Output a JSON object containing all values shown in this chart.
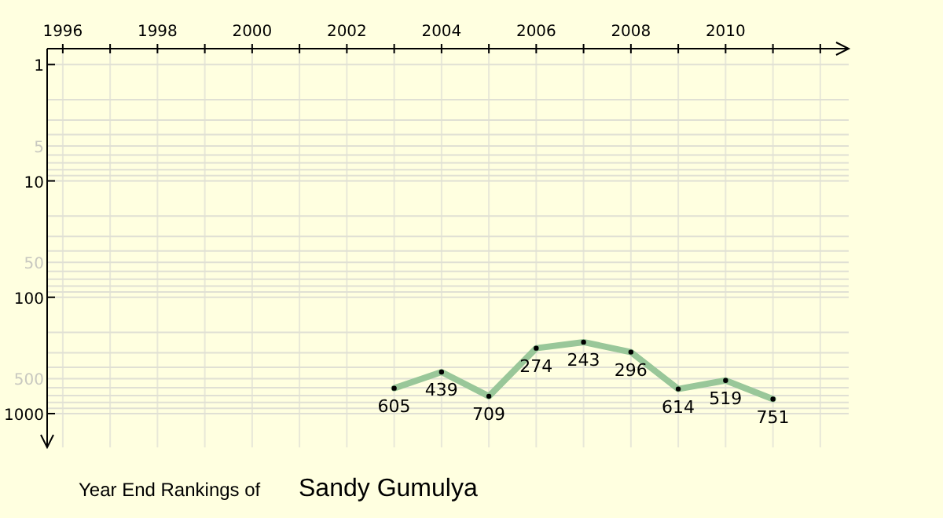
{
  "chart_data": {
    "type": "line",
    "title": "Year End Rankings of",
    "subtitle": "Sandy Gumulya",
    "x": [
      2003,
      2004,
      2005,
      2006,
      2007,
      2008,
      2009,
      2010,
      2011
    ],
    "series": [
      {
        "color": "#99c799",
        "values": [
          605,
          439,
          709,
          274,
          243,
          296,
          614,
          519,
          751
        ]
      }
    ],
    "xlim": [
      1995.67,
      2012.6
    ],
    "xticks": [
      1996,
      {
        "value": 1997,
        "label": null
      },
      1998,
      {
        "value": 1999,
        "label": null
      },
      2000,
      {
        "value": 2001,
        "label": null
      },
      2002,
      {
        "value": 2003,
        "label": null
      },
      2004,
      {
        "value": 2005,
        "label": null
      },
      2006,
      {
        "value": 2007,
        "label": null
      },
      2008,
      {
        "value": 2009,
        "label": null
      },
      2010,
      {
        "value": 2011,
        "label": null
      },
      {
        "value": 2012,
        "label": null
      }
    ],
    "log": true,
    "ylim": [
      1950,
      0.73
    ],
    "yticks": [
      1,
      {
        "value": 2,
        "label": null
      },
      {
        "value": 3,
        "label": null
      },
      {
        "value": 4,
        "label": null
      },
      5,
      {
        "value": 6,
        "label": null
      },
      {
        "value": 7,
        "label": null
      },
      {
        "value": 8,
        "label": null
      },
      {
        "value": 9,
        "label": null
      },
      10,
      {
        "value": 20,
        "label": null
      },
      {
        "value": 30,
        "label": null
      },
      {
        "value": 40,
        "label": null
      },
      50,
      {
        "value": 60,
        "label": null
      },
      {
        "value": 70,
        "label": null
      },
      {
        "value": 80,
        "label": null
      },
      {
        "value": 90,
        "label": null
      },
      100,
      {
        "value": 200,
        "label": null
      },
      {
        "value": 300,
        "label": null
      },
      {
        "value": 400,
        "label": null
      },
      500,
      {
        "value": 600,
        "label": null
      },
      {
        "value": 700,
        "label": null
      },
      {
        "value": 800,
        "label": null
      },
      {
        "value": 900,
        "label": null
      },
      1000
    ],
    "grid": true,
    "marker": "circle",
    "line_style": "solid",
    "data_labels": true
  }
}
